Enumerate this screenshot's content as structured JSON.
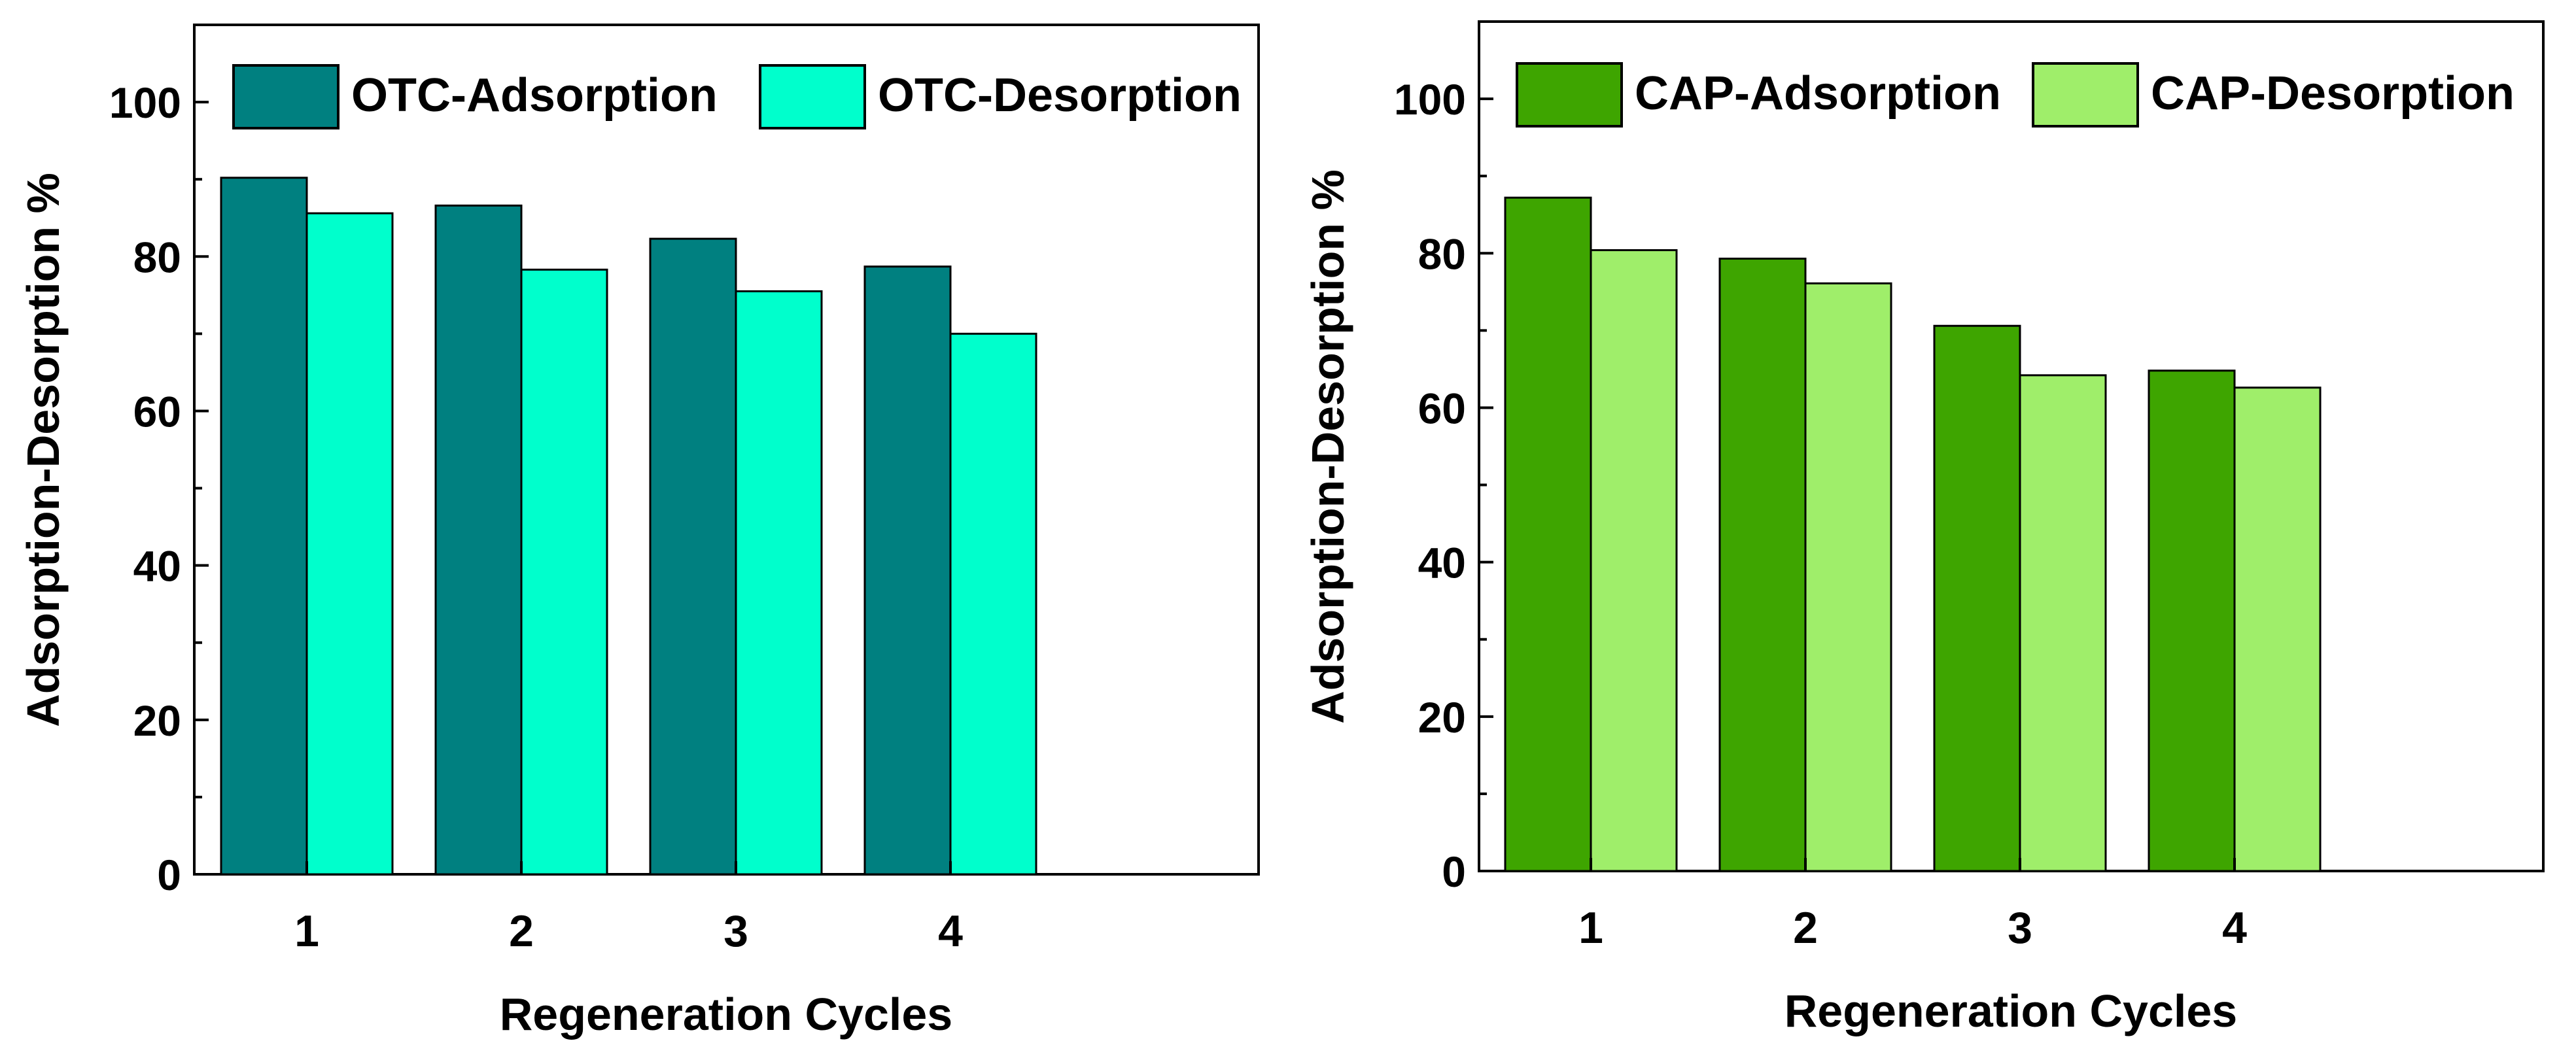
{
  "chart_data": [
    {
      "type": "bar",
      "categories": [
        "1",
        "2",
        "3",
        "4"
      ],
      "series": [
        {
          "name": "OTC-Adsorption",
          "values": [
            90.2,
            86.6,
            82.3,
            78.7
          ],
          "color": "#008080"
        },
        {
          "name": "OTC-Desorption",
          "values": [
            85.6,
            78.3,
            75.5,
            70.0
          ],
          "color": "#00FFCC"
        }
      ],
      "xlabel": "Regeneration Cycles",
      "ylabel": "Adsorption-Desorption %",
      "ylim": [
        0,
        110
      ],
      "yticks": [
        0,
        20,
        40,
        60,
        80,
        100
      ],
      "legend": "top"
    },
    {
      "type": "bar",
      "categories": [
        "1",
        "2",
        "3",
        "4"
      ],
      "series": [
        {
          "name": "CAP-Adsorption",
          "values": [
            87.2,
            79.3,
            70.6,
            64.8
          ],
          "color": "#3EA500"
        },
        {
          "name": "CAP-Desorption",
          "values": [
            80.4,
            76.1,
            64.2,
            62.6
          ],
          "color": "#9FEE6A"
        }
      ],
      "xlabel": "Regeneration Cycles",
      "ylabel": "Adsorption-Desorption %",
      "ylim": [
        0,
        110
      ],
      "yticks": [
        0,
        20,
        40,
        60,
        80,
        100
      ],
      "legend": "top"
    }
  ]
}
